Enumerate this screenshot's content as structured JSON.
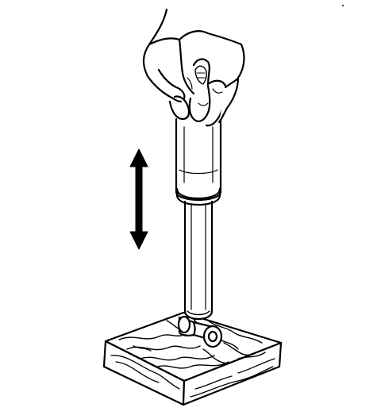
{
  "illustration": {
    "subject": "hand-compressing-shock-absorber-on-wooden-block",
    "motion_indicator": "vertical-double-headed-arrow",
    "colors": {
      "ink": "#000000",
      "paper": "#ffffff"
    }
  }
}
